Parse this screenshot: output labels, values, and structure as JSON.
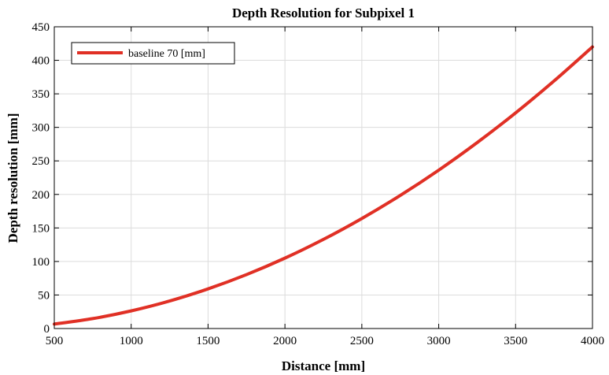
{
  "chart_data": {
    "type": "line",
    "title": "Depth Resolution for Subpixel 1",
    "xlabel": "Distance [mm]",
    "ylabel": "Depth resolution [mm]",
    "xlim": [
      500,
      4000
    ],
    "ylim": [
      0,
      450
    ],
    "xticks": [
      500,
      1000,
      1500,
      2000,
      2500,
      3000,
      3500,
      4000
    ],
    "yticks": [
      0,
      50,
      100,
      150,
      200,
      250,
      300,
      350,
      400,
      450
    ],
    "grid": true,
    "legend_position": "top-left",
    "series": [
      {
        "name": "baseline 70 [mm]",
        "color": "#e03025",
        "x": [
          500,
          750,
          1000,
          1250,
          1500,
          1750,
          2000,
          2250,
          2500,
          2750,
          3000,
          3250,
          3500,
          3750,
          4000
        ],
        "y": [
          6.6,
          14.8,
          26.3,
          41.0,
          59.1,
          80.4,
          105.0,
          132.9,
          164.1,
          198.5,
          236.2,
          277.3,
          321.6,
          369.2,
          420.0
        ]
      }
    ]
  }
}
